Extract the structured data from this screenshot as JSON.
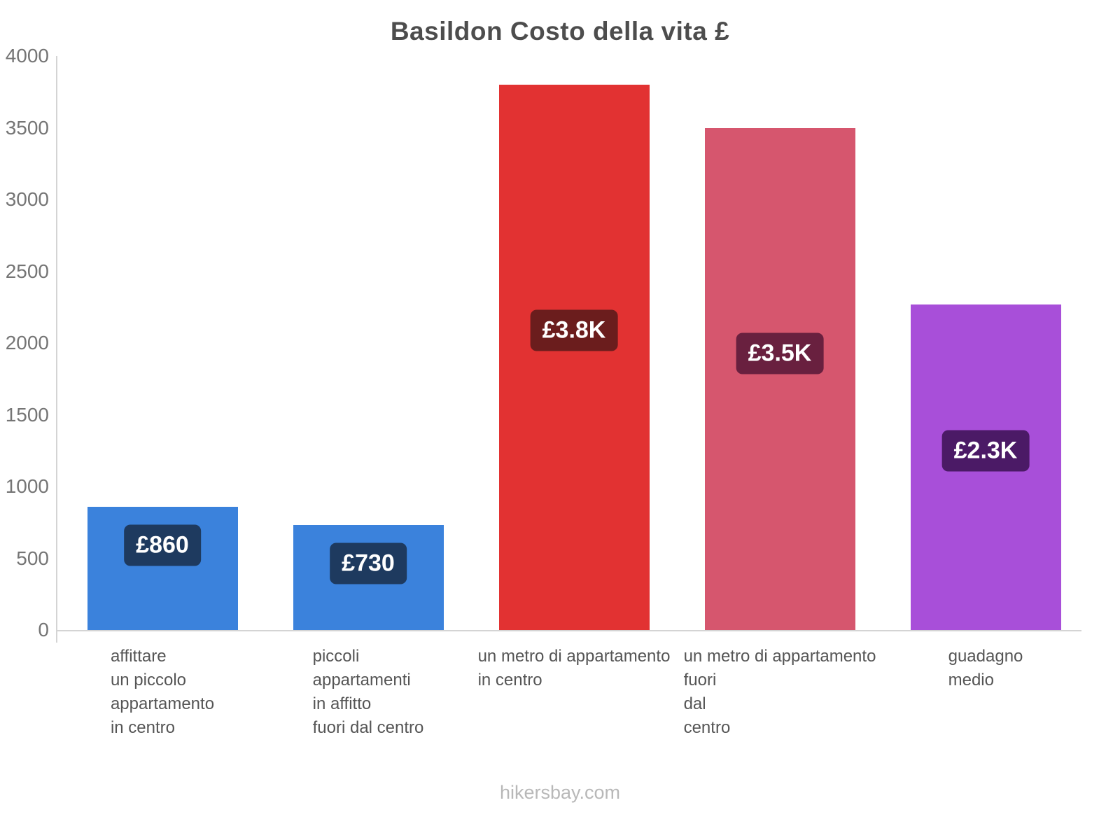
{
  "title": "Basildon Costo della vita £",
  "footer": {
    "text": "hikersbay.com"
  },
  "chart_data": {
    "type": "bar",
    "title": "Basildon Costo della vita £",
    "currency": "£",
    "categories": [
      "affittare\nun piccolo\nappartamento\nin centro",
      "piccoli\nappartamenti\nin affitto\nfuori dal centro",
      "un metro di appartamento\nin centro",
      "un metro di appartamento\nfuori\ndal\ncentro",
      "guadagno\nmedio"
    ],
    "values": [
      860,
      730,
      3800,
      3500,
      2270
    ],
    "value_labels": [
      "£860",
      "£730",
      "£3.8K",
      "£3.5K",
      "£2.3K"
    ],
    "bar_colors": [
      "#3b82dc",
      "#3b82dc",
      "#e23232",
      "#d6566e",
      "#a84fd9"
    ],
    "value_label_bg_colors": [
      "#1e3a5f",
      "#1e3a5f",
      "#6b1d1d",
      "#69203f",
      "#4b1a66"
    ],
    "ylim": [
      0,
      4000
    ],
    "yticks": [
      0,
      500,
      1000,
      1500,
      2000,
      2500,
      3000,
      3500,
      4000
    ],
    "grid": false,
    "legend": false,
    "xlabel": "",
    "ylabel": ""
  }
}
